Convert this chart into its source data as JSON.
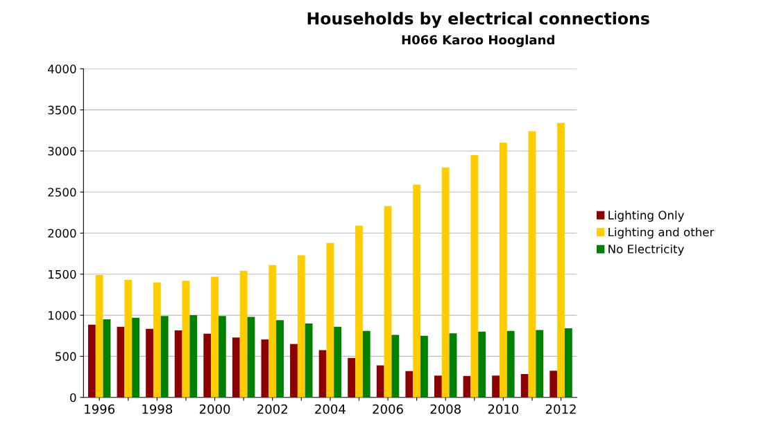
{
  "chart_data": {
    "type": "bar",
    "title": "Households by electrical connections",
    "subtitle": "H066 Karoo Hoogland",
    "categories": [
      "1996",
      null,
      "1998",
      null,
      "2000",
      null,
      "2002",
      null,
      "2004",
      null,
      "2006",
      null,
      "2008",
      null,
      "2010",
      null,
      "2012"
    ],
    "series": [
      {
        "name": "Lighting Only",
        "color": "#8b0000",
        "values": [
          885,
          860,
          835,
          815,
          775,
          730,
          705,
          650,
          575,
          480,
          390,
          320,
          265,
          260,
          265,
          285,
          325
        ]
      },
      {
        "name": "Lighting and other",
        "color": "#ffcc00",
        "values": [
          1490,
          1430,
          1400,
          1420,
          1470,
          1540,
          1610,
          1730,
          1880,
          2090,
          2330,
          2590,
          2800,
          2950,
          3100,
          3240,
          3340
        ]
      },
      {
        "name": "No Electricity",
        "color": "#008000",
        "values": [
          950,
          970,
          990,
          1000,
          990,
          980,
          940,
          900,
          860,
          810,
          760,
          750,
          780,
          800,
          810,
          820,
          840
        ]
      }
    ],
    "ylim": [
      0,
      4000
    ],
    "yticks": [
      0,
      500,
      1000,
      1500,
      2000,
      2500,
      3000,
      3500,
      4000
    ],
    "grid": "y",
    "legend": "right"
  }
}
